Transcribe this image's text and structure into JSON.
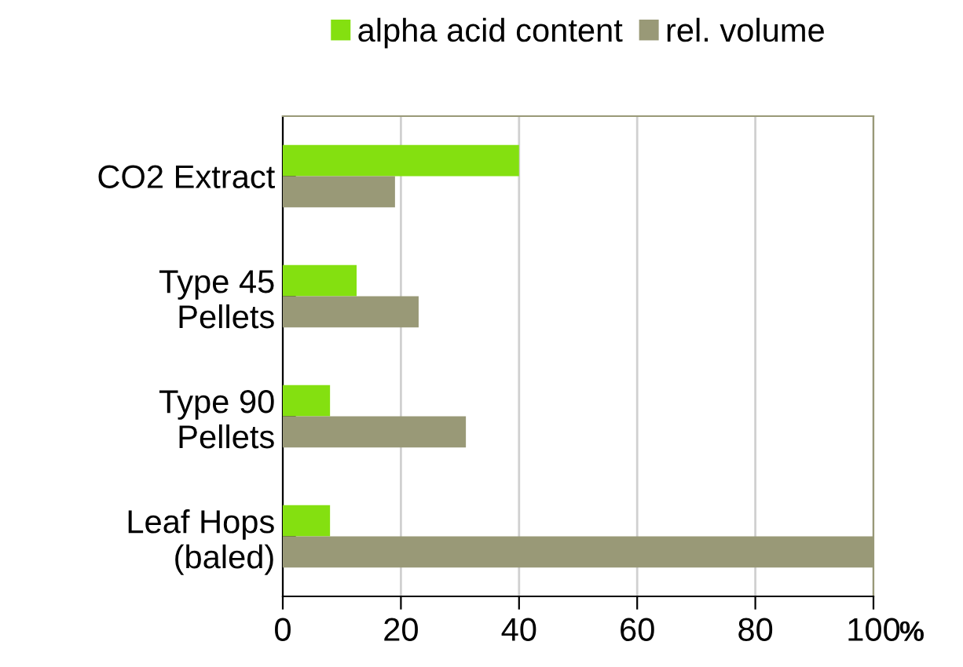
{
  "chart_data": {
    "type": "bar",
    "orientation": "horizontal",
    "categories": [
      "CO2 Extract",
      "Type 45\nPellets",
      "Type 90\nPellets",
      "Leaf Hops\n(baled)"
    ],
    "series": [
      {
        "name": "alpha acid content",
        "color": "#84e010",
        "values": [
          40,
          12.5,
          8,
          8
        ]
      },
      {
        "name": "rel. volume",
        "color": "#999977",
        "values": [
          19,
          23,
          31,
          100
        ]
      }
    ],
    "xlim": [
      0,
      100
    ],
    "xticks": [
      0,
      20,
      40,
      60,
      80,
      100
    ],
    "xlabel": "%",
    "grid": "x",
    "legend": "top"
  }
}
